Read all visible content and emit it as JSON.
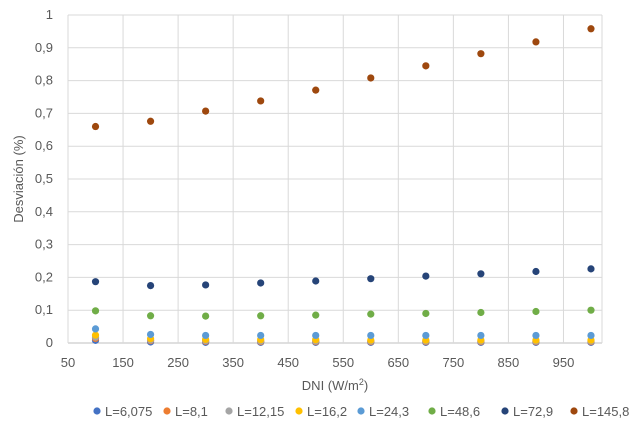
{
  "chart_data": {
    "type": "scatter",
    "title": "",
    "xlabel": "DNI (W/m",
    "xlabel_sup": "2",
    "xlabel_end": ")",
    "ylabel": "Desviación (%)",
    "xlim": [
      50,
      1020
    ],
    "ylim": [
      0,
      1
    ],
    "xticks": [
      50,
      150,
      250,
      350,
      450,
      550,
      650,
      750,
      850,
      950
    ],
    "xtick_labels": [
      "50",
      "150",
      "250",
      "350",
      "450",
      "550",
      "650",
      "750",
      "850",
      "950"
    ],
    "yticks": [
      0,
      0.1,
      0.2,
      0.3,
      0.4,
      0.5,
      0.6,
      0.7,
      0.8,
      0.9,
      1
    ],
    "ytick_labels": [
      "0",
      "0,1",
      "0,2",
      "0,3",
      "0,4",
      "0,5",
      "0,6",
      "0,7",
      "0,8",
      "0,9",
      "1"
    ],
    "grid": true,
    "legend_position": "bottom",
    "x": [
      100,
      200,
      300,
      400,
      500,
      600,
      700,
      800,
      900,
      1000
    ],
    "series": [
      {
        "name": "L=6,075",
        "color": "#4472C4",
        "values": [
          0.008,
          0.003,
          0.002,
          0.002,
          0.002,
          0.002,
          0.002,
          0.002,
          0.002,
          0.002
        ]
      },
      {
        "name": "L=8,1",
        "color": "#ED7D31",
        "values": [
          0.014,
          0.007,
          0.005,
          0.004,
          0.004,
          0.004,
          0.004,
          0.004,
          0.004,
          0.004
        ]
      },
      {
        "name": "L=12,15",
        "color": "#A5A5A5",
        "values": [
          0.018,
          0.009,
          0.007,
          0.006,
          0.006,
          0.006,
          0.006,
          0.006,
          0.006,
          0.006
        ]
      },
      {
        "name": "L=16,2",
        "color": "#FFC000",
        "values": [
          0.024,
          0.013,
          0.011,
          0.01,
          0.01,
          0.009,
          0.009,
          0.009,
          0.009,
          0.009
        ]
      },
      {
        "name": "L=24,3",
        "color": "#5B9BD5",
        "values": [
          0.043,
          0.026,
          0.023,
          0.023,
          0.023,
          0.023,
          0.023,
          0.023,
          0.023,
          0.023
        ]
      },
      {
        "name": "L=48,6",
        "color": "#70AD47",
        "values": [
          0.098,
          0.083,
          0.082,
          0.083,
          0.085,
          0.088,
          0.09,
          0.093,
          0.096,
          0.1
        ]
      },
      {
        "name": "L=72,9",
        "color": "#264478",
        "values": [
          0.187,
          0.175,
          0.177,
          0.183,
          0.189,
          0.196,
          0.204,
          0.211,
          0.218,
          0.226
        ]
      },
      {
        "name": "L=145,8",
        "color": "#9E480E",
        "values": [
          0.66,
          0.676,
          0.707,
          0.738,
          0.771,
          0.808,
          0.845,
          0.882,
          0.918,
          0.958
        ]
      }
    ]
  }
}
